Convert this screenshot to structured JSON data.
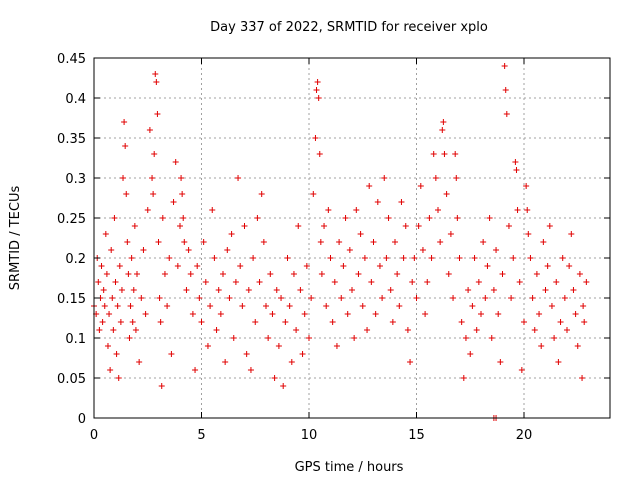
{
  "chart_data": {
    "type": "scatter",
    "title": "Day 337 of 2022, SRMTID for receiver xplo",
    "xlabel": "GPS time / hours",
    "ylabel": "SRMTID / TECUs",
    "xlim": [
      0,
      24
    ],
    "ylim": [
      0,
      0.45
    ],
    "x_ticks": [
      "0",
      "5",
      "10",
      "15",
      "20"
    ],
    "x_tick_values": [
      0,
      5,
      10,
      15,
      20
    ],
    "y_ticks": [
      "0",
      "0.05",
      "0.1",
      "0.15",
      "0.2",
      "0.25",
      "0.3",
      "0.35",
      "0.4",
      "0.45"
    ],
    "y_tick_values": [
      0,
      0.05,
      0.1,
      0.15,
      0.2,
      0.25,
      0.3,
      0.35,
      0.4,
      0.45
    ],
    "grid": true,
    "marker": "plus",
    "color": "#e00000",
    "series": [
      {
        "values": [
          [
            0.0,
            0.14
          ],
          [
            0.1,
            0.13
          ],
          [
            0.15,
            0.2
          ],
          [
            0.2,
            0.17
          ],
          [
            0.25,
            0.11
          ],
          [
            0.3,
            0.15
          ],
          [
            0.35,
            0.19
          ],
          [
            0.4,
            0.12
          ],
          [
            0.45,
            0.16
          ],
          [
            0.5,
            0.14
          ],
          [
            0.55,
            0.23
          ],
          [
            0.6,
            0.18
          ],
          [
            0.65,
            0.09
          ],
          [
            0.7,
            0.13
          ],
          [
            0.75,
            0.06
          ],
          [
            0.8,
            0.21
          ],
          [
            0.85,
            0.15
          ],
          [
            0.9,
            0.11
          ],
          [
            0.95,
            0.25
          ],
          [
            1.0,
            0.17
          ],
          [
            1.05,
            0.08
          ],
          [
            1.1,
            0.14
          ],
          [
            1.15,
            0.05
          ],
          [
            1.2,
            0.19
          ],
          [
            1.25,
            0.12
          ],
          [
            1.3,
            0.16
          ],
          [
            1.35,
            0.3
          ],
          [
            1.4,
            0.37
          ],
          [
            1.45,
            0.34
          ],
          [
            1.5,
            0.28
          ],
          [
            1.55,
            0.22
          ],
          [
            1.6,
            0.18
          ],
          [
            1.65,
            0.1
          ],
          [
            1.7,
            0.14
          ],
          [
            1.75,
            0.2
          ],
          [
            1.8,
            0.12
          ],
          [
            1.85,
            0.16
          ],
          [
            1.9,
            0.24
          ],
          [
            1.95,
            0.11
          ],
          [
            2.0,
            0.18
          ],
          [
            2.1,
            0.07
          ],
          [
            2.2,
            0.15
          ],
          [
            2.3,
            0.21
          ],
          [
            2.4,
            0.13
          ],
          [
            2.5,
            0.26
          ],
          [
            2.6,
            0.36
          ],
          [
            2.7,
            0.3
          ],
          [
            2.75,
            0.28
          ],
          [
            2.8,
            0.33
          ],
          [
            2.85,
            0.43
          ],
          [
            2.9,
            0.42
          ],
          [
            2.95,
            0.38
          ],
          [
            3.0,
            0.22
          ],
          [
            3.05,
            0.15
          ],
          [
            3.1,
            0.12
          ],
          [
            3.15,
            0.04
          ],
          [
            3.2,
            0.25
          ],
          [
            3.3,
            0.18
          ],
          [
            3.4,
            0.14
          ],
          [
            3.5,
            0.2
          ],
          [
            3.6,
            0.08
          ],
          [
            3.7,
            0.27
          ],
          [
            3.8,
            0.32
          ],
          [
            3.9,
            0.19
          ],
          [
            4.0,
            0.24
          ],
          [
            4.05,
            0.3
          ],
          [
            4.1,
            0.28
          ],
          [
            4.15,
            0.25
          ],
          [
            4.2,
            0.22
          ],
          [
            4.3,
            0.16
          ],
          [
            4.4,
            0.21
          ],
          [
            4.5,
            0.18
          ],
          [
            4.6,
            0.13
          ],
          [
            4.7,
            0.06
          ],
          [
            4.8,
            0.19
          ],
          [
            4.9,
            0.15
          ],
          [
            5.0,
            0.12
          ],
          [
            5.1,
            0.22
          ],
          [
            5.2,
            0.17
          ],
          [
            5.3,
            0.09
          ],
          [
            5.4,
            0.14
          ],
          [
            5.5,
            0.26
          ],
          [
            5.6,
            0.2
          ],
          [
            5.7,
            0.11
          ],
          [
            5.8,
            0.16
          ],
          [
            5.9,
            0.13
          ],
          [
            6.0,
            0.18
          ],
          [
            6.1,
            0.07
          ],
          [
            6.2,
            0.21
          ],
          [
            6.3,
            0.15
          ],
          [
            6.4,
            0.23
          ],
          [
            6.5,
            0.1
          ],
          [
            6.6,
            0.17
          ],
          [
            6.7,
            0.3
          ],
          [
            6.8,
            0.19
          ],
          [
            6.9,
            0.14
          ],
          [
            7.0,
            0.24
          ],
          [
            7.1,
            0.08
          ],
          [
            7.2,
            0.16
          ],
          [
            7.3,
            0.06
          ],
          [
            7.4,
            0.2
          ],
          [
            7.5,
            0.12
          ],
          [
            7.6,
            0.25
          ],
          [
            7.7,
            0.17
          ],
          [
            7.8,
            0.28
          ],
          [
            7.9,
            0.22
          ],
          [
            8.0,
            0.14
          ],
          [
            8.1,
            0.1
          ],
          [
            8.2,
            0.18
          ],
          [
            8.3,
            0.13
          ],
          [
            8.4,
            0.05
          ],
          [
            8.5,
            0.16
          ],
          [
            8.6,
            0.09
          ],
          [
            8.7,
            0.15
          ],
          [
            8.8,
            0.04
          ],
          [
            8.9,
            0.12
          ],
          [
            9.0,
            0.2
          ],
          [
            9.1,
            0.14
          ],
          [
            9.2,
            0.07
          ],
          [
            9.3,
            0.18
          ],
          [
            9.4,
            0.11
          ],
          [
            9.5,
            0.24
          ],
          [
            9.6,
            0.16
          ],
          [
            9.7,
            0.08
          ],
          [
            9.8,
            0.13
          ],
          [
            9.9,
            0.19
          ],
          [
            10.0,
            0.1
          ],
          [
            10.1,
            0.15
          ],
          [
            10.2,
            0.28
          ],
          [
            10.3,
            0.35
          ],
          [
            10.35,
            0.41
          ],
          [
            10.4,
            0.42
          ],
          [
            10.45,
            0.4
          ],
          [
            10.5,
            0.33
          ],
          [
            10.55,
            0.22
          ],
          [
            10.6,
            0.18
          ],
          [
            10.7,
            0.24
          ],
          [
            10.8,
            0.14
          ],
          [
            10.9,
            0.26
          ],
          [
            11.0,
            0.2
          ],
          [
            11.1,
            0.12
          ],
          [
            11.2,
            0.17
          ],
          [
            11.3,
            0.09
          ],
          [
            11.4,
            0.22
          ],
          [
            11.5,
            0.15
          ],
          [
            11.6,
            0.19
          ],
          [
            11.7,
            0.25
          ],
          [
            11.8,
            0.13
          ],
          [
            11.9,
            0.21
          ],
          [
            12.0,
            0.16
          ],
          [
            12.1,
            0.1
          ],
          [
            12.2,
            0.26
          ],
          [
            12.3,
            0.18
          ],
          [
            12.4,
            0.23
          ],
          [
            12.5,
            0.14
          ],
          [
            12.6,
            0.2
          ],
          [
            12.7,
            0.11
          ],
          [
            12.8,
            0.29
          ],
          [
            12.9,
            0.17
          ],
          [
            13.0,
            0.22
          ],
          [
            13.1,
            0.13
          ],
          [
            13.2,
            0.27
          ],
          [
            13.3,
            0.19
          ],
          [
            13.4,
            0.15
          ],
          [
            13.5,
            0.3
          ],
          [
            13.6,
            0.2
          ],
          [
            13.7,
            0.25
          ],
          [
            13.8,
            0.16
          ],
          [
            13.9,
            0.12
          ],
          [
            14.0,
            0.22
          ],
          [
            14.1,
            0.18
          ],
          [
            14.2,
            0.14
          ],
          [
            14.3,
            0.27
          ],
          [
            14.4,
            0.2
          ],
          [
            14.5,
            0.24
          ],
          [
            14.6,
            0.11
          ],
          [
            14.7,
            0.07
          ],
          [
            14.8,
            0.17
          ],
          [
            14.9,
            0.2
          ],
          [
            15.0,
            0.15
          ],
          [
            15.1,
            0.24
          ],
          [
            15.2,
            0.29
          ],
          [
            15.3,
            0.21
          ],
          [
            15.4,
            0.13
          ],
          [
            15.5,
            0.17
          ],
          [
            15.6,
            0.25
          ],
          [
            15.7,
            0.2
          ],
          [
            15.8,
            0.33
          ],
          [
            15.9,
            0.3
          ],
          [
            16.0,
            0.26
          ],
          [
            16.1,
            0.22
          ],
          [
            16.2,
            0.36
          ],
          [
            16.25,
            0.37
          ],
          [
            16.3,
            0.33
          ],
          [
            16.4,
            0.28
          ],
          [
            16.5,
            0.18
          ],
          [
            16.6,
            0.23
          ],
          [
            16.7,
            0.15
          ],
          [
            16.8,
            0.33
          ],
          [
            16.85,
            0.3
          ],
          [
            16.9,
            0.25
          ],
          [
            17.0,
            0.2
          ],
          [
            17.1,
            0.12
          ],
          [
            17.2,
            0.05
          ],
          [
            17.3,
            0.1
          ],
          [
            17.4,
            0.16
          ],
          [
            17.5,
            0.08
          ],
          [
            17.6,
            0.14
          ],
          [
            17.7,
            0.2
          ],
          [
            17.8,
            0.11
          ],
          [
            17.9,
            0.17
          ],
          [
            18.0,
            0.13
          ],
          [
            18.1,
            0.22
          ],
          [
            18.2,
            0.15
          ],
          [
            18.3,
            0.19
          ],
          [
            18.4,
            0.25
          ],
          [
            18.5,
            0.1
          ],
          [
            18.6,
            0.16
          ],
          [
            18.7,
            0.21
          ],
          [
            18.8,
            0.13
          ],
          [
            18.9,
            0.07
          ],
          [
            19.0,
            0.18
          ],
          [
            19.1,
            0.44
          ],
          [
            19.15,
            0.41
          ],
          [
            19.2,
            0.38
          ],
          [
            19.3,
            0.24
          ],
          [
            19.4,
            0.15
          ],
          [
            19.5,
            0.2
          ],
          [
            19.6,
            0.32
          ],
          [
            19.65,
            0.31
          ],
          [
            19.7,
            0.26
          ],
          [
            19.8,
            0.17
          ],
          [
            19.9,
            0.06
          ],
          [
            20.0,
            0.12
          ],
          [
            20.1,
            0.29
          ],
          [
            20.15,
            0.26
          ],
          [
            20.2,
            0.23
          ],
          [
            20.3,
            0.2
          ],
          [
            20.4,
            0.15
          ],
          [
            20.5,
            0.11
          ],
          [
            20.6,
            0.18
          ],
          [
            20.7,
            0.13
          ],
          [
            20.8,
            0.09
          ],
          [
            20.9,
            0.22
          ],
          [
            21.0,
            0.16
          ],
          [
            21.1,
            0.19
          ],
          [
            21.2,
            0.24
          ],
          [
            21.3,
            0.14
          ],
          [
            21.4,
            0.1
          ],
          [
            21.5,
            0.17
          ],
          [
            21.6,
            0.07
          ],
          [
            21.7,
            0.12
          ],
          [
            21.8,
            0.2
          ],
          [
            21.9,
            0.15
          ],
          [
            22.0,
            0.11
          ],
          [
            22.1,
            0.19
          ],
          [
            22.2,
            0.23
          ],
          [
            22.3,
            0.16
          ],
          [
            22.4,
            0.13
          ],
          [
            22.5,
            0.09
          ],
          [
            22.6,
            0.18
          ],
          [
            22.7,
            0.05
          ],
          [
            22.75,
            0.14
          ],
          [
            22.8,
            0.12
          ],
          [
            22.9,
            0.17
          ],
          [
            18.6,
            0.0
          ],
          [
            18.7,
            0.0
          ]
        ]
      }
    ]
  }
}
